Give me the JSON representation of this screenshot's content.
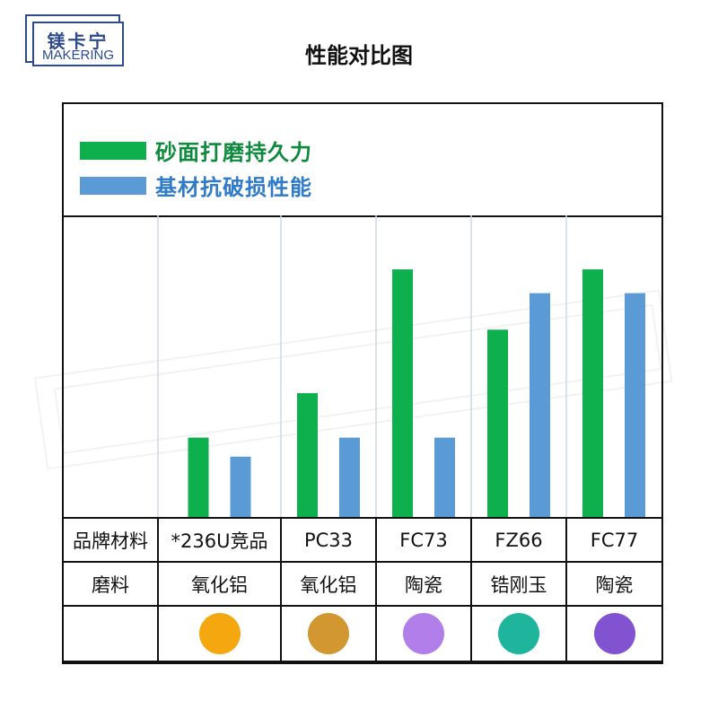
{
  "logo": {
    "cn": "镁卡宁",
    "en": "MAKERING"
  },
  "title": "性能对比图",
  "legend": [
    {
      "label": "砂面打磨持久力",
      "color": "#0eb04d"
    },
    {
      "label": "基材抗破损性能",
      "color": "#5b9bd5"
    }
  ],
  "chart_data": {
    "type": "bar",
    "categories": [
      "*236U竞品",
      "PC33",
      "FC73",
      "FZ66",
      "FC77"
    ],
    "series": [
      {
        "name": "砂面打磨持久力",
        "color": "#0eb04d",
        "values": [
          2.5,
          3.9,
          7.8,
          5.9,
          7.8
        ]
      },
      {
        "name": "基材抗破损性能",
        "color": "#5b9bd5",
        "values": [
          1.9,
          2.5,
          2.5,
          7.05,
          7.05
        ]
      }
    ],
    "ylim": [
      0,
      9.5
    ],
    "grid": "vertical separators"
  },
  "table": {
    "row1_label": "品牌材料",
    "row2_label": "磨料",
    "abrasives": [
      "氧化铝",
      "氧化铝",
      "陶瓷",
      "锆刚玉",
      "陶瓷"
    ],
    "dot_colors": [
      "#f5a70f",
      "#d39731",
      "#b27ee9",
      "#1fb59c",
      "#8253d0"
    ]
  }
}
